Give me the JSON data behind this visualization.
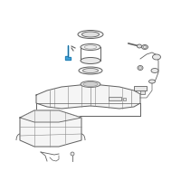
{
  "background_color": "#ffffff",
  "line_color": "#606060",
  "line_color2": "#888888",
  "highlight_color": "#3a9fd8",
  "fig_width": 2.0,
  "fig_height": 2.0,
  "dpi": 100
}
